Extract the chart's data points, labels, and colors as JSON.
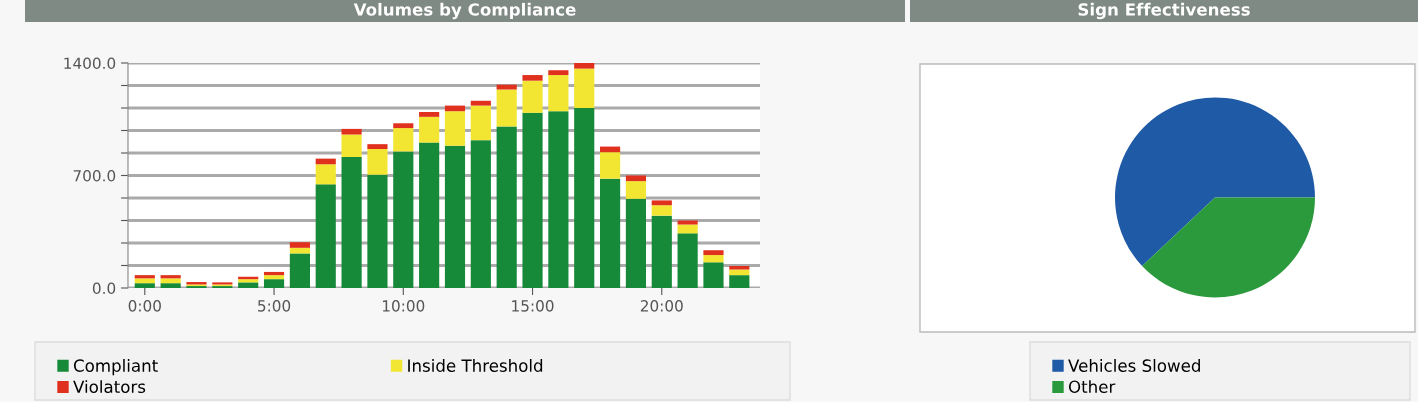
{
  "chart_data": [
    {
      "type": "bar",
      "title": "Volumes by Compliance",
      "stacked": true,
      "x": [
        0,
        1,
        2,
        3,
        4,
        5,
        6,
        7,
        8,
        9,
        10,
        11,
        12,
        13,
        14,
        15,
        16,
        17,
        18,
        19,
        20,
        21,
        22,
        23
      ],
      "xlim": [
        -0.65,
        23.8
      ],
      "xticks": [
        {
          "value": 0,
          "label": "0:00"
        },
        {
          "value": 5,
          "label": "5:00"
        },
        {
          "value": 10,
          "label": "10:00"
        },
        {
          "value": 15,
          "label": "15:00"
        },
        {
          "value": 20,
          "label": "20:00"
        }
      ],
      "ylim": [
        0,
        1400
      ],
      "yticks": [
        {
          "value": 0,
          "label": "0.0"
        },
        {
          "value": 140,
          "label": null
        },
        {
          "value": 280,
          "label": null
        },
        {
          "value": 420,
          "label": null
        },
        {
          "value": 560,
          "label": null
        },
        {
          "value": 700,
          "label": "700.0"
        },
        {
          "value": 840,
          "label": null
        },
        {
          "value": 980,
          "label": null
        },
        {
          "value": 1120,
          "label": null
        },
        {
          "value": 1260,
          "label": null
        },
        {
          "value": 1400,
          "label": "1400.0"
        }
      ],
      "grid": "y",
      "legend": "bottom",
      "series": [
        {
          "name": "Compliant",
          "color": "#178a3a",
          "values": [
            30,
            30,
            12,
            12,
            35,
            55,
            215,
            645,
            815,
            705,
            850,
            905,
            885,
            920,
            1005,
            1090,
            1100,
            1120,
            680,
            555,
            450,
            340,
            160,
            80
          ]
        },
        {
          "name": "Inside Threshold",
          "color": "#f2e633",
          "values": [
            30,
            30,
            10,
            10,
            20,
            25,
            35,
            125,
            140,
            160,
            145,
            160,
            215,
            215,
            230,
            200,
            225,
            245,
            165,
            110,
            65,
            55,
            45,
            35
          ]
        },
        {
          "name": "Violators",
          "color": "#e0301e",
          "values": [
            20,
            20,
            15,
            13,
            15,
            20,
            35,
            35,
            35,
            30,
            30,
            30,
            35,
            30,
            30,
            35,
            30,
            35,
            35,
            35,
            30,
            25,
            30,
            22
          ]
        }
      ]
    },
    {
      "type": "pie",
      "title": "Sign Effectiveness",
      "legend": "bottom",
      "categories": [
        "Vehicles Slowed",
        "Other"
      ],
      "values": [
        62,
        38
      ],
      "colors": [
        "#1f5aa6",
        "#2a9a3c"
      ]
    }
  ]
}
